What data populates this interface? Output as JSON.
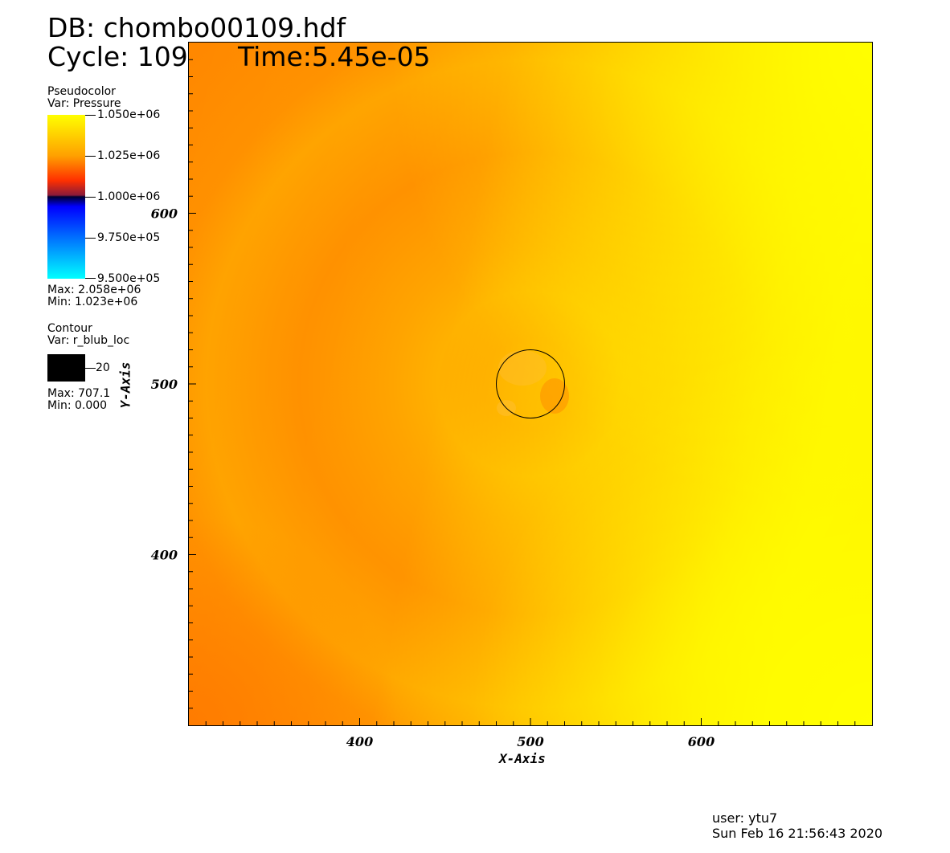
{
  "header": {
    "db_line": "DB: chombo00109.hdf",
    "cycle_line": "Cycle: 109",
    "time_line": "Time:5.45e-05"
  },
  "legend": {
    "pseudocolor": {
      "title": "Pseudocolor",
      "var": "Var: Pressure",
      "ticks": [
        "1.050e+06",
        "1.025e+06",
        "1.000e+06",
        "9.750e+05",
        "9.500e+05"
      ],
      "max": "Max: 2.058e+06",
      "min": "Min: 1.023e+06",
      "colormap": [
        "#ffff00",
        "#ffa000",
        "#ff3000",
        "#000030",
        "#0000ff",
        "#0070ff",
        "#00ffff"
      ]
    },
    "contour": {
      "title": "Contour",
      "var": "Var: r_blub_loc",
      "level_label": "20",
      "max": "Max: 707.1",
      "min": "Min: 0.000",
      "color": "#000000"
    }
  },
  "footer": {
    "user": "user: ytu7",
    "timestamp": "Sun Feb 16 21:56:43 2020"
  },
  "chart_data": {
    "type": "heatmap",
    "xlabel": "X-Axis",
    "ylabel": "Y-Axis",
    "xlim": [
      300,
      700
    ],
    "ylim": [
      300,
      700
    ],
    "x_major_ticks": [
      400,
      500,
      600
    ],
    "y_major_ticks": [
      400,
      500,
      600
    ],
    "minor_tick_step": 10,
    "grid": false,
    "field": "Pressure",
    "field_colors": {
      "bright_yellow": "#ffff00",
      "yellow_orange": "#ffc800",
      "orange": "#ffa500",
      "deep_orange": "#ff8c00"
    },
    "contour": {
      "variable": "r_blub_loc",
      "level": 20,
      "center": [
        500,
        500
      ],
      "radius": 20,
      "color": "#000000"
    }
  }
}
